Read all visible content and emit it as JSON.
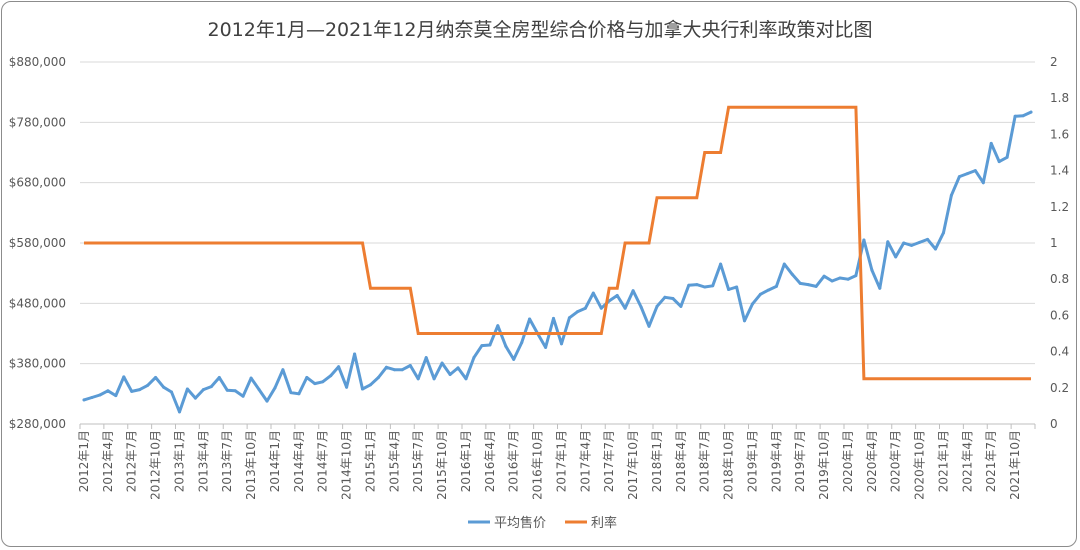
{
  "chart_data": {
    "type": "line",
    "title": "2012年1月—2021年12月纳奈莫全房型综合价格与加拿大央行利率政策对比图",
    "y_left": {
      "min": 280000,
      "max": 880000,
      "ticks": [
        280000,
        380000,
        480000,
        580000,
        680000,
        780000,
        880000
      ],
      "tick_labels": [
        "$280,000",
        "$380,000",
        "$480,000",
        "$580,000",
        "$680,000",
        "$780,000",
        "$880,000"
      ]
    },
    "y_right": {
      "min": 0,
      "max": 2,
      "ticks": [
        0,
        0.2,
        0.4,
        0.6,
        0.8,
        1,
        1.2,
        1.4,
        1.6,
        1.8,
        2
      ],
      "tick_labels": [
        "0",
        "0.2",
        "0.4",
        "0.6",
        "0.8",
        "1",
        "1.2",
        "1.4",
        "1.6",
        "1.8",
        "2"
      ]
    },
    "x_labels": [
      "2012年1月",
      "2012年4月",
      "2012年7月",
      "2012年10月",
      "2013年1月",
      "2013年4月",
      "2013年7月",
      "2013年10月",
      "2014年1月",
      "2014年4月",
      "2014年7月",
      "2014年10月",
      "2015年1月",
      "2015年4月",
      "2015年7月",
      "2015年10月",
      "2016年1月",
      "2016年4月",
      "2016年7月",
      "2016年10月",
      "2017年1月",
      "2017年4月",
      "2017年7月",
      "2017年10月",
      "2018年1月",
      "2018年4月",
      "2018年7月",
      "2018年10月",
      "2019年1月",
      "2019年4月",
      "2019年7月",
      "2019年10月",
      "2020年1月",
      "2020年4月",
      "2020年7月",
      "2020年10月",
      "2021年1月",
      "2021年4月",
      "2021年7月",
      "2021年10月"
    ],
    "legend": "bottom",
    "series": [
      {
        "name": "平均售价",
        "color": "#5b9bd5",
        "axis": "left",
        "values": [
          320000,
          324000,
          328000,
          335000,
          327000,
          358000,
          334000,
          337000,
          344000,
          357000,
          341000,
          333000,
          300000,
          338000,
          323000,
          337000,
          342000,
          357000,
          336000,
          335000,
          326000,
          356000,
          337000,
          318000,
          340000,
          370000,
          332000,
          330000,
          357000,
          347000,
          350000,
          360000,
          375000,
          341000,
          396000,
          338000,
          345000,
          357000,
          374000,
          370000,
          370000,
          377000,
          355000,
          390000,
          355000,
          381000,
          362000,
          373000,
          355000,
          390000,
          410000,
          411000,
          443000,
          409000,
          387000,
          415000,
          454000,
          430000,
          407000,
          455000,
          413000,
          456000,
          466000,
          472000,
          497000,
          472000,
          484000,
          493000,
          472000,
          501000,
          474000,
          442000,
          475000,
          490000,
          488000,
          475000,
          510000,
          511000,
          507000,
          509000,
          545000,
          503000,
          507000,
          451000,
          479000,
          495000,
          502000,
          508000,
          545000,
          528000,
          513000,
          511000,
          508000,
          525000,
          517000,
          522000,
          520000,
          526000,
          585000,
          535000,
          505000,
          582000,
          557000,
          580000,
          576000,
          581000,
          586000,
          570000,
          597000,
          659000,
          690000,
          695000,
          700000,
          680000,
          745000,
          715000,
          722000,
          790000,
          791000,
          797000
        ],
        "labels": []
      },
      {
        "name": "利率",
        "color": "#ed7d31",
        "axis": "right",
        "steps": [
          {
            "from": 0,
            "rate": 1.0
          },
          {
            "from": 36,
            "rate": 0.75
          },
          {
            "from": 42,
            "rate": 0.5
          },
          {
            "from": 66,
            "rate": 0.75
          },
          {
            "from": 68,
            "rate": 1.0
          },
          {
            "from": 72,
            "rate": 1.25
          },
          {
            "from": 78,
            "rate": 1.5
          },
          {
            "from": 81,
            "rate": 1.75
          },
          {
            "from": 98,
            "rate": 0.25
          }
        ]
      }
    ]
  }
}
